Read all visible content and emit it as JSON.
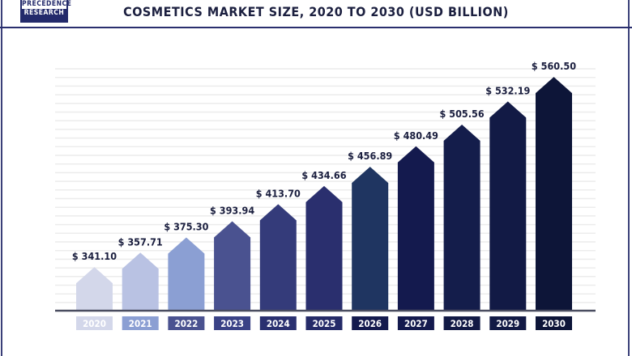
{
  "logo": {
    "line1": "PRECEDENCE",
    "line2": "RESEARCH"
  },
  "chart_data": {
    "type": "bar",
    "title": "COSMETICS MARKET SIZE, 2020 TO 2030 (USD BILLION)",
    "categories": [
      "2020",
      "2021",
      "2022",
      "2023",
      "2024",
      "2025",
      "2026",
      "2027",
      "2028",
      "2029",
      "2030"
    ],
    "values": [
      341.1,
      357.71,
      375.3,
      393.94,
      413.7,
      434.66,
      456.89,
      480.49,
      505.56,
      532.19,
      560.5
    ],
    "data_labels": [
      "$ 341.10",
      "$ 357.71",
      "$ 375.30",
      "$ 393.94",
      "$ 413.70",
      "$ 434.66",
      "$ 456.89",
      "$ 480.49",
      "$ 505.56",
      "$ 532.19",
      "$ 560.50"
    ],
    "xlabel": "",
    "ylabel": "",
    "grid": true,
    "bar_colors": [
      "#d3d7ea",
      "#b9c2e3",
      "#8b9fd3",
      "#4a5290",
      "#343b7a",
      "#2a2f6e",
      "#1f3561",
      "#141a4e",
      "#141d4b",
      "#121a45",
      "#0d1538"
    ],
    "label_box_colors": [
      "#d3d7ea",
      "#8b9fd3",
      "#4a5290",
      "#3a4286",
      "#2a3070",
      "#252b68",
      "#141a4e",
      "#141a4e",
      "#121a45",
      "#121a45",
      "#0d1538"
    ]
  }
}
